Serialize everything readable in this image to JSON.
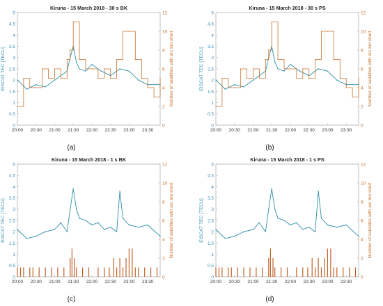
{
  "colors": {
    "tec": "#2e8fa6",
    "arc": "#c8702c",
    "axis_left": "#3a8fb0",
    "axis_right": "#c8702c",
    "bars": "#c0622a"
  },
  "chart_data": [
    {
      "panel_label": "(a)",
      "type": "line",
      "title": "Kiruna - 15 March 2018 - 30 s BK",
      "ylabel": "EISCAT TEC [TECU]",
      "y2label": "Number of satellites with arc too short",
      "x_tick_labels": [
        "20:00",
        "20:30",
        "21:00",
        "21:30",
        "22:00",
        "22:30",
        "23:00",
        "23:30"
      ],
      "ylim": [
        0,
        5
      ],
      "y_ticks": [
        "0",
        "0.5",
        "1",
        "1.5",
        "2",
        "2.5",
        "3",
        "3.5",
        "4",
        "4.5",
        "5"
      ],
      "y2lim": [
        0,
        12
      ],
      "y2_ticks": [
        "0",
        "2",
        "4",
        "6",
        "8",
        "10",
        "12"
      ],
      "series": [
        {
          "axis": "left",
          "style": "line",
          "x": [
            "20:00",
            "20:15",
            "20:30",
            "20:45",
            "21:00",
            "21:10",
            "21:20",
            "21:25",
            "21:30",
            "21:35",
            "21:40",
            "21:50",
            "22:00",
            "22:15",
            "22:30",
            "22:45",
            "23:00",
            "23:15",
            "23:30",
            "23:50"
          ],
          "values": [
            2.0,
            1.6,
            1.8,
            1.7,
            2.0,
            2.2,
            2.4,
            3.0,
            3.5,
            2.8,
            2.5,
            2.4,
            2.7,
            2.4,
            2.2,
            2.5,
            2.4,
            2.0,
            1.8,
            1.8
          ]
        },
        {
          "axis": "right",
          "style": "step",
          "x": [
            "20:00",
            "20:10",
            "20:20",
            "20:30",
            "20:40",
            "20:50",
            "21:00",
            "21:10",
            "21:20",
            "21:25",
            "21:30",
            "21:40",
            "21:50",
            "22:00",
            "22:10",
            "22:20",
            "22:30",
            "22:40",
            "22:50",
            "23:00",
            "23:10",
            "23:20",
            "23:30",
            "23:40",
            "23:50"
          ],
          "values": [
            2,
            5,
            4,
            4,
            6,
            5,
            6,
            5,
            7,
            8,
            11,
            7,
            6,
            6,
            5,
            6,
            5,
            7,
            10,
            10,
            7,
            5,
            4,
            3,
            5
          ]
        }
      ]
    },
    {
      "panel_label": "(b)",
      "type": "line",
      "title": "Kiruna - 15 March 2018 - 30 s PS",
      "ylabel": "EISCAT TEC [TECU]",
      "y2label": "Number of satellites with arc too short",
      "x_tick_labels": [
        "20:00",
        "20:30",
        "21:00",
        "21:30",
        "22:00",
        "22:30",
        "23:00",
        "23:30"
      ],
      "ylim": [
        0,
        5
      ],
      "y_ticks": [
        "0",
        "0.5",
        "1",
        "1.5",
        "2",
        "2.5",
        "3",
        "3.5",
        "4",
        "4.5",
        "5"
      ],
      "y2lim": [
        0,
        12
      ],
      "y2_ticks": [
        "0",
        "2",
        "4",
        "6",
        "8",
        "10",
        "12"
      ],
      "series": [
        {
          "axis": "left",
          "style": "line",
          "x": [
            "20:00",
            "20:15",
            "20:30",
            "20:45",
            "21:00",
            "21:10",
            "21:20",
            "21:25",
            "21:30",
            "21:35",
            "21:40",
            "21:50",
            "22:00",
            "22:15",
            "22:30",
            "22:45",
            "23:00",
            "23:15",
            "23:30",
            "23:50"
          ],
          "values": [
            2.0,
            1.6,
            1.8,
            1.7,
            2.0,
            2.2,
            2.4,
            3.0,
            3.5,
            2.8,
            2.5,
            2.4,
            2.7,
            2.4,
            2.2,
            2.5,
            2.4,
            2.0,
            1.8,
            1.8
          ]
        },
        {
          "axis": "right",
          "style": "step",
          "x": [
            "20:00",
            "20:10",
            "20:20",
            "20:30",
            "20:40",
            "20:50",
            "21:00",
            "21:10",
            "21:20",
            "21:25",
            "21:30",
            "21:40",
            "21:50",
            "22:00",
            "22:10",
            "22:20",
            "22:30",
            "22:40",
            "22:50",
            "23:00",
            "23:10",
            "23:20",
            "23:30",
            "23:40",
            "23:50"
          ],
          "values": [
            2,
            5,
            4,
            4,
            6,
            5,
            6,
            5,
            7,
            8,
            11,
            7,
            6,
            6,
            5,
            6,
            5,
            7,
            10,
            10,
            7,
            5,
            4,
            3,
            5
          ]
        }
      ]
    },
    {
      "panel_label": "(c)",
      "type": "line",
      "title": "Kiruna - 15 March 2018 - 1 s BK",
      "ylabel": "EISCAT TEC [TECU]",
      "y2label": "Number of satellites with arc too short",
      "x_tick_labels": [
        "20:00",
        "20:30",
        "21:00",
        "21:30",
        "22:00",
        "22:30",
        "23:00",
        "23:30"
      ],
      "ylim": [
        0,
        5
      ],
      "y_ticks": [
        "0",
        "0.5",
        "1",
        "1.5",
        "2",
        "2.5",
        "3",
        "3.5",
        "4",
        "4.5",
        "5"
      ],
      "y2lim": [
        0,
        12
      ],
      "y2_ticks": [
        "0",
        "2",
        "4",
        "6",
        "8",
        "10",
        "12"
      ],
      "series": [
        {
          "axis": "left",
          "style": "line",
          "x": [
            "20:00",
            "20:15",
            "20:30",
            "20:45",
            "21:00",
            "21:10",
            "21:20",
            "21:25",
            "21:30",
            "21:35",
            "21:40",
            "21:50",
            "22:00",
            "22:10",
            "22:20",
            "22:30",
            "22:40",
            "22:45",
            "22:50",
            "23:00",
            "23:15",
            "23:30",
            "23:50"
          ],
          "values": [
            2.1,
            1.7,
            1.8,
            2.0,
            2.1,
            2.4,
            2.0,
            3.0,
            3.9,
            3.0,
            2.6,
            2.5,
            2.3,
            2.4,
            2.1,
            2.2,
            2.0,
            3.8,
            2.6,
            2.3,
            2.2,
            2.3,
            1.8
          ]
        },
        {
          "axis": "right",
          "style": "bars",
          "x": [
            "20:00",
            "20:05",
            "20:10",
            "20:20",
            "20:25",
            "20:35",
            "20:45",
            "20:55",
            "21:05",
            "21:15",
            "21:25",
            "21:28",
            "21:32",
            "21:35",
            "21:45",
            "21:55",
            "22:10",
            "22:20",
            "22:28",
            "22:35",
            "22:40",
            "22:45",
            "22:50",
            "22:55",
            "23:00",
            "23:05",
            "23:10",
            "23:15",
            "23:25",
            "23:35",
            "23:45"
          ],
          "values": [
            1,
            1,
            1,
            1,
            1,
            1,
            1,
            1,
            1,
            1,
            2,
            3,
            2,
            1,
            1,
            1,
            1,
            1,
            1,
            2,
            1,
            2,
            1,
            2,
            3,
            3,
            1,
            1,
            1,
            1,
            1
          ]
        }
      ]
    },
    {
      "panel_label": "(d)",
      "type": "line",
      "title": "Kiruna - 15 March 2018 - 1 s PS",
      "ylabel": "EISCAT TEC [TECU]",
      "y2label": "Number of satellites with arc too short",
      "x_tick_labels": [
        "20:00",
        "20:30",
        "21:00",
        "21:30",
        "22:00",
        "22:30",
        "23:00",
        "23:30"
      ],
      "ylim": [
        0,
        5
      ],
      "y_ticks": [
        "0",
        "0.5",
        "1",
        "1.5",
        "2",
        "2.5",
        "3",
        "3.5",
        "4",
        "4.5",
        "5"
      ],
      "y2lim": [
        0,
        12
      ],
      "y2_ticks": [
        "0",
        "2",
        "4",
        "6",
        "8",
        "10",
        "12"
      ],
      "series": [
        {
          "axis": "left",
          "style": "line",
          "x": [
            "20:00",
            "20:15",
            "20:30",
            "20:45",
            "21:00",
            "21:10",
            "21:20",
            "21:25",
            "21:30",
            "21:35",
            "21:40",
            "21:50",
            "22:00",
            "22:10",
            "22:20",
            "22:30",
            "22:40",
            "22:45",
            "22:50",
            "23:00",
            "23:15",
            "23:30",
            "23:50"
          ],
          "values": [
            2.1,
            1.7,
            1.8,
            2.0,
            2.1,
            2.4,
            2.0,
            3.0,
            3.9,
            3.0,
            2.6,
            2.5,
            2.3,
            2.4,
            2.1,
            2.2,
            2.0,
            3.8,
            2.6,
            2.3,
            2.2,
            2.3,
            1.8
          ]
        },
        {
          "axis": "right",
          "style": "bars",
          "x": [
            "20:00",
            "20:05",
            "20:10",
            "20:20",
            "20:25",
            "20:35",
            "20:45",
            "20:55",
            "21:05",
            "21:15",
            "21:25",
            "21:28",
            "21:32",
            "21:35",
            "21:45",
            "21:55",
            "22:10",
            "22:20",
            "22:28",
            "22:35",
            "22:40",
            "22:45",
            "22:50",
            "22:55",
            "23:00",
            "23:05",
            "23:10",
            "23:15",
            "23:25",
            "23:35",
            "23:45"
          ],
          "values": [
            1,
            1,
            1,
            1,
            1,
            1,
            1,
            1,
            1,
            1,
            2,
            3,
            2,
            1,
            1,
            1,
            1,
            1,
            1,
            2,
            1,
            2,
            1,
            2,
            3,
            3,
            1,
            1,
            1,
            1,
            1
          ]
        }
      ]
    }
  ]
}
